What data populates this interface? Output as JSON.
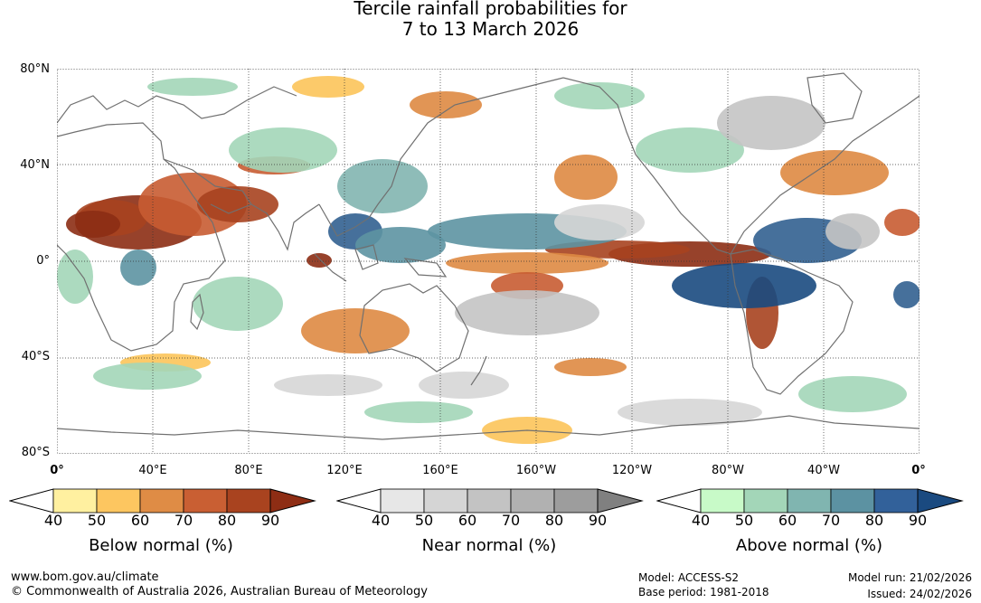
{
  "title": {
    "line1": "Tercile rainfall probabilities for",
    "line2": "7 to 13 March 2026"
  },
  "map": {
    "lat_labels": [
      "80°N",
      "40°N",
      "0°",
      "40°S",
      "80°S"
    ],
    "lon_labels": [
      "0°",
      "40°E",
      "80°E",
      "120°E",
      "160°E",
      "160°W",
      "120°W",
      "80°W",
      "40°W",
      "0°"
    ],
    "colors": {
      "below": [
        "#fdeca0",
        "#fcc45a",
        "#de8a42",
        "#c85c32",
        "#a7421f",
        "#8c2d14"
      ],
      "near": [
        "#e6e6e6",
        "#d6d6d6",
        "#c4c4c4",
        "#b0b0b0",
        "#9c9c9c",
        "#808080"
      ],
      "above": [
        "#c8f5c8",
        "#a3d6b8",
        "#82b5b0",
        "#5d93a2",
        "#326090",
        "#1a4a80"
      ]
    }
  },
  "colorbars": [
    {
      "title": "Below normal (%)",
      "ticks": [
        "40",
        "50",
        "60",
        "70",
        "80",
        "90"
      ],
      "colors": [
        "#ffffff",
        "#fff0a0",
        "#fdc660",
        "#df8c45",
        "#c95f33",
        "#a9431f",
        "#8e2d14"
      ]
    },
    {
      "title": "Near normal (%)",
      "ticks": [
        "40",
        "50",
        "60",
        "70",
        "80",
        "90"
      ],
      "colors": [
        "#ffffff",
        "#e7e7e7",
        "#d5d5d5",
        "#c3c3c3",
        "#b1b1b1",
        "#9d9d9d",
        "#808080"
      ]
    },
    {
      "title": "Above normal (%)",
      "ticks": [
        "40",
        "50",
        "60",
        "70",
        "80",
        "90"
      ],
      "colors": [
        "#ffffff",
        "#c8fac8",
        "#a3d6b8",
        "#80b5b0",
        "#5c92a2",
        "#32619a",
        "#1a4a80"
      ]
    }
  ],
  "footer": {
    "website": "www.bom.gov.au/climate",
    "copyright": "© Commonwealth of Australia 2026, Australian Bureau of Meteorology",
    "model": "Model: ACCESS-S2",
    "base_period": "Base period: 1981-2018",
    "model_run": "Model run: 21/02/2026",
    "issued": "Issued: 24/02/2026"
  }
}
